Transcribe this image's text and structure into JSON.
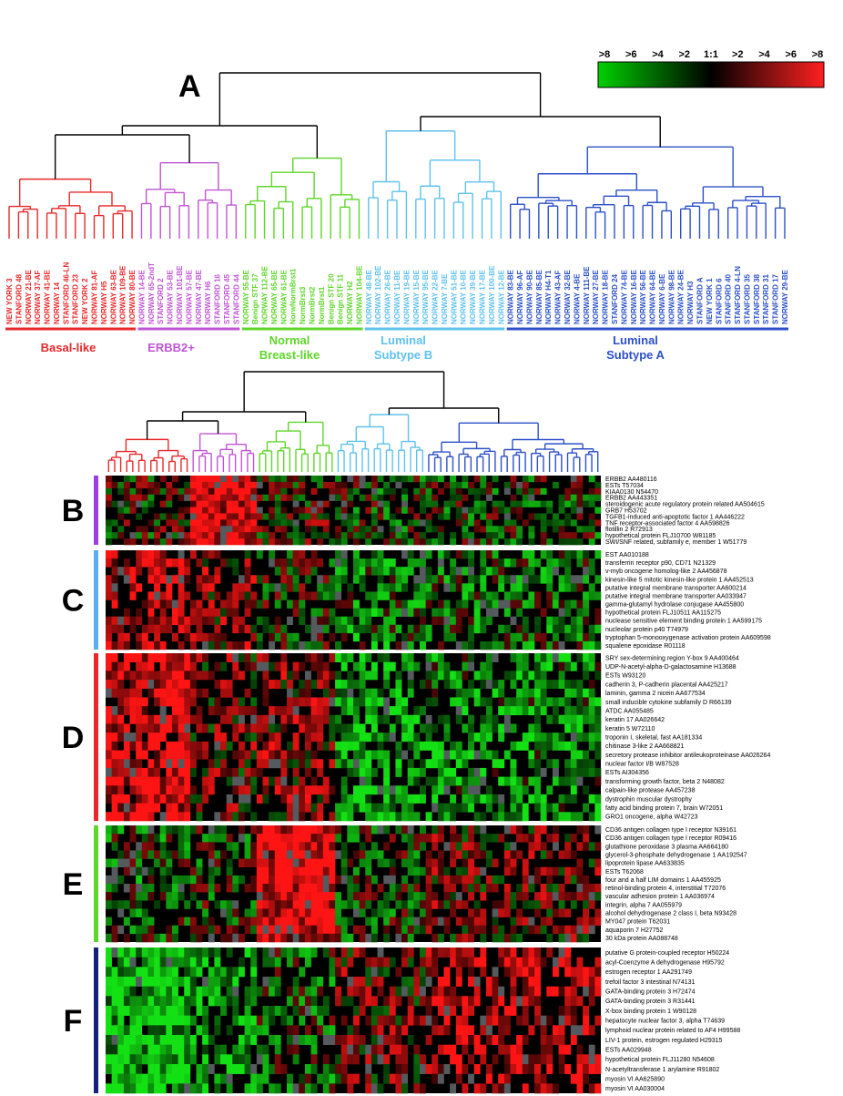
{
  "chart_data": {
    "type": "heatmap",
    "dendrogram_panel": {
      "letter": "A",
      "groups": [
        {
          "name": "Basal-like",
          "label_lines": [
            "Basal-like"
          ],
          "color": "#e8282b",
          "samples": [
            "NEW YORK 3",
            "STANFORD 48",
            "NORWAY 21-BE",
            "NORWAY 37-AF",
            "NORWAY 41-BE",
            "NORWAY 14",
            "STANFORD 46-LN",
            "STANFORD 23",
            "NEW YORK 2",
            "NORWAY 81-AF",
            "NORWAY H5",
            "NORWAY 63-BE",
            "NORWAY 109-BE",
            "NORWAY 80-BE"
          ]
        },
        {
          "name": "ERBB2+",
          "label_lines": [
            "ERBB2+"
          ],
          "color": "#c154d4",
          "samples": [
            "NORWAY 14-BE",
            "NORWAY 65-2ndT",
            "STANFORD 2",
            "NORWAY 53-BE",
            "NORWAY 101-BE",
            "NORWAY 57-BE",
            "NORWAY 47-BE",
            "NORWAY H6",
            "STANFORD 16",
            "STANFORD 45",
            "STANFORD 44"
          ]
        },
        {
          "name": "Normal Breast-like",
          "label_lines": [
            "Normal",
            "Breast-like"
          ],
          "color": "#5fd62a",
          "samples": [
            "NORWAY 55-BE",
            "Benign STF 37",
            "NORWAY 112-BE",
            "NORWAY 65-BE",
            "NORWAY 61-BE",
            "NorwNormBrst1",
            "NormBrst3",
            "NormBrst2",
            "NormBrst1",
            "Benign STF 20",
            "Benign STF 11",
            "NORWAY H2",
            "NORWAY 104-BE"
          ]
        },
        {
          "name": "Luminal Subtype B",
          "label_lines": [
            "Luminal",
            "Subtype B"
          ],
          "color": "#5ec2ec",
          "samples": [
            "NORWAY 48-BE",
            "NORWAY 102-BE",
            "NORWAY 26-BE",
            "NORWAY 11-BE",
            "NORWAY 19-BE",
            "NORWAY 15-BE",
            "NORWAY 95-BE",
            "NORWAY 22-BE",
            "NORWAY 7-BE",
            "NORWAY 51-BE",
            "NORWAY 10-BE",
            "NORWAY 39-BE",
            "NORWAY 17-BE",
            "NORWAY 100-BE",
            "NORWAY 12-BE"
          ]
        },
        {
          "name": "Luminal Subtype A",
          "label_lines": [
            "Luminal",
            "Subtype A"
          ],
          "color": "#2c50c8",
          "samples": [
            "NORWAY 83-BE",
            "NORWAY 96-AF",
            "NORWAY 90-BE",
            "NORWAY 85-BE",
            "NORWAY H4-T1",
            "NORWAY 43-AF",
            "NORWAY 32-BE",
            "NORWAY 4-BE",
            "NORWAY 111-BE",
            "NORWAY 27-BE",
            "NORWAY 18-BE",
            "STANFORD 24",
            "NORWAY 74-BE",
            "NORWAY 16-BE",
            "NORWAY 56-BE",
            "NORWAY 64-BE",
            "NORWAY 6-BE",
            "NORWAY 98-BE",
            "NORWAY 24-BE",
            "NORWAY H3",
            "STANFORD A",
            "NEW YORK 1",
            "STANFORD 6",
            "STANFORD 40",
            "STANFORD 4-LN",
            "STANFORD 35",
            "STANFORD 38",
            "STANFORD 31",
            "STANFORD 17",
            "NORWAY 29-BE"
          ]
        }
      ]
    },
    "color_scale": {
      "labels": [
        ">8",
        ">6",
        ">4",
        ">2",
        "1:1",
        ">2",
        ">4",
        ">6",
        ">8"
      ],
      "low_color": "#00d000",
      "mid_color": "#000000",
      "high_color": "#ff2020"
    },
    "clusters": [
      {
        "letter": "B",
        "bar_color": "#9b3fe0",
        "genes": [
          "ERBB2 AA480116",
          "ESTs T57034",
          "KIAA0130 N54470",
          "ERBB2 AA443351",
          "steroidogenic acute regulatory protein related AA504615",
          "GRB7 H53702",
          "TGFB1-induced anti-apoptotic factor 1 AA446222",
          "TNF receptor-associated factor 4 AA598826",
          "flotillin 2 R72913",
          "hypothetical protein FLJ10700 W81185",
          "SWI/SNF related, subfamily e, member 1 W51779"
        ]
      },
      {
        "letter": "C",
        "bar_color": "#5aaef0",
        "genes": [
          "EST AA010188",
          "transferrin receptor p90, CD71 N21329",
          "v-myb oncogene homolog-like 2 AA456878",
          "kinesin-like 5 mitotic kinesin-like protein 1 AA452513",
          "putative integral membrane transporter AA600214",
          "putative integral membrane transporter AA033947",
          "gamma-glutamyl hydrolase conjugase AA455800",
          "hypothetical protein FLJ10511 AA115275",
          "nuclease sensitive element binding protein 1 AA599175",
          "nucleolar protein p40 T74979",
          "tryptophan 5-monooxygenase activation protein AA609598",
          "squalene epoxidase R01118"
        ]
      },
      {
        "letter": "D",
        "bar_color": "#e8282b",
        "genes": [
          "SRY sex-determining region Y-box 9 AA400464",
          "UDP-N-acetyl-alpha-D-galactosamine H13688",
          "ESTs W93120",
          "cadherin 3, P-cadherin placental AA425217",
          "laminin, gamma 2 nicein AA677534",
          "small inducible cytokine subfamily D R66139",
          "ATDC AA055485",
          "keratin 17 AA026642",
          "keratin 5 W72110",
          "troponin I, skeletal, fast AA181334",
          "chitinase 3-like 2 AA668821",
          "secretory protease inhibitor antileukoproteinase AA026264",
          "nuclear factor I/B W87528",
          "ESTs AI304356",
          "transforming growth factor, beta 2 N48082",
          "calpain-like protease AA457238",
          "dystrophin muscular dystrophy",
          "fatty acid binding protein 7, brain W72051",
          "GRO1 oncogene, alpha W42723"
        ]
      },
      {
        "letter": "E",
        "bar_color": "#5fd62a",
        "genes": [
          "CD36 antigen collagen type I receptor N39161",
          "CD36 antigen collagen type I receptor R09416",
          "glutathione peroxidase 3 plasma AA664180",
          "glycerol-3-phosphate dehydrogenase 1 AA192547",
          "lipoprotein lipase AA633835",
          "ESTs T62068",
          "four and a half LIM domains 1 AA455925",
          "retinol-binding protein 4, interstitial T72076",
          "vascular adhesion protein 1 AA036974",
          "integrin, alpha 7 AA055979",
          "alcohol dehydrogenase 2 class I, beta N93428",
          "MY047 protein T62031",
          "aquaporin 7 H27752",
          "30 kDa protein AA088748"
        ]
      },
      {
        "letter": "F",
        "bar_color": "#14207a",
        "genes": [
          "putative G protein-coupled receptor H50224",
          "acyl-Coenzyme A dehydrogenase H95792",
          "estrogen receptor 1 AA291749",
          "trefoil factor 3 intestinal N74131",
          "GATA-binding protein 3 H72474",
          "GATA-binding protein 3 R31441",
          "X-box binding protein 1 W90128",
          "hepatocyte nuclear factor 3, alpha T74639",
          "lymphoid nuclear protein related to AF4 H99588",
          "LIV-1 protein, estrogen regulated H29315",
          "ESTs AA029948",
          "hypothetical protein FLJ11280 N54608",
          "N-acetyltransferase 1 arylamine R91802",
          "myosin VI AA625890",
          "myosin VI AA030004"
        ]
      }
    ]
  }
}
